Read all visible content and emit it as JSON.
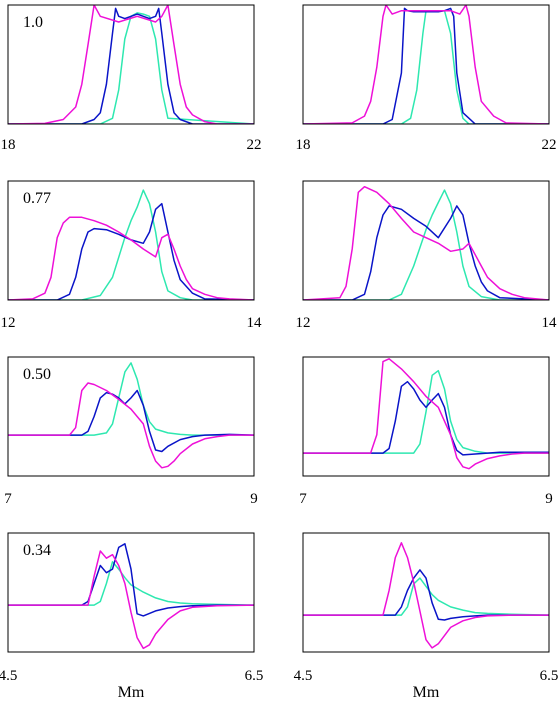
{
  "colors": {
    "cyan": "#2ee8b0",
    "blue": "#0a14c8",
    "magenta": "#ee10d8"
  },
  "chart_data": [
    {
      "type": "line",
      "panel_label": "1.0",
      "xlabel": "",
      "xlim": [
        18,
        22
      ],
      "ylim": [
        0,
        1.05
      ],
      "xticks": [
        "18",
        "22"
      ],
      "series": [
        {
          "color": "cyan",
          "x": [
            18,
            19.5,
            19.7,
            19.8,
            19.9,
            20.0,
            20.1,
            20.2,
            20.3,
            20.4,
            20.5,
            20.6,
            22
          ],
          "y": [
            0,
            0,
            0.05,
            0.3,
            0.75,
            0.95,
            0.98,
            0.97,
            0.95,
            0.75,
            0.3,
            0.05,
            0
          ]
        },
        {
          "color": "blue",
          "x": [
            18,
            19.2,
            19.4,
            19.5,
            19.6,
            19.7,
            19.75,
            19.8,
            19.9,
            20.1,
            20.3,
            20.4,
            20.45,
            20.5,
            20.6,
            20.7,
            20.8,
            21.0,
            22
          ],
          "y": [
            0,
            0,
            0.04,
            0.1,
            0.35,
            0.8,
            1.02,
            0.95,
            0.93,
            0.97,
            0.93,
            0.95,
            1.02,
            0.8,
            0.35,
            0.1,
            0.04,
            0,
            0
          ]
        },
        {
          "color": "magenta",
          "x": [
            18,
            18.6,
            18.9,
            19.1,
            19.2,
            19.3,
            19.4,
            19.5,
            19.8,
            20.1,
            20.4,
            20.5,
            20.6,
            20.7,
            20.8,
            20.9,
            21.0,
            21.2,
            21.4,
            22
          ],
          "y": [
            0,
            0.005,
            0.04,
            0.15,
            0.35,
            0.7,
            1.05,
            0.95,
            0.9,
            0.95,
            0.9,
            0.95,
            1.05,
            0.7,
            0.35,
            0.15,
            0.08,
            0.02,
            0,
            0
          ]
        }
      ]
    },
    {
      "type": "line",
      "panel_label": "",
      "xlabel": "",
      "xlim": [
        18,
        22
      ],
      "ylim": [
        0,
        1.05
      ],
      "xticks": [
        "18",
        "22"
      ],
      "series": [
        {
          "color": "cyan",
          "x": [
            18,
            19.6,
            19.75,
            19.85,
            19.95,
            20.0,
            20.1,
            20.2,
            20.3,
            20.4,
            20.5,
            20.6,
            20.7,
            22
          ],
          "y": [
            0,
            0,
            0.05,
            0.3,
            0.8,
            1.0,
            1.0,
            1.0,
            1.0,
            0.8,
            0.3,
            0.05,
            0,
            0
          ]
        },
        {
          "color": "blue",
          "x": [
            18,
            19.3,
            19.45,
            19.6,
            19.65,
            19.7,
            19.8,
            20.0,
            20.2,
            20.3,
            20.4,
            20.45,
            20.5,
            20.6,
            20.8,
            22
          ],
          "y": [
            0,
            0,
            0.04,
            0.45,
            1.02,
            1.0,
            0.99,
            0.99,
            0.99,
            1.0,
            1.02,
            0.95,
            0.45,
            0.1,
            0,
            0
          ]
        },
        {
          "color": "magenta",
          "x": [
            18,
            18.8,
            19.0,
            19.1,
            19.2,
            19.3,
            19.35,
            19.45,
            19.6,
            20.4,
            20.55,
            20.65,
            20.7,
            20.8,
            20.9,
            21.1,
            21.3,
            22
          ],
          "y": [
            0,
            0.01,
            0.07,
            0.2,
            0.5,
            0.95,
            1.05,
            0.97,
            1.0,
            1.0,
            0.97,
            1.05,
            0.95,
            0.5,
            0.2,
            0.07,
            0.01,
            0
          ]
        }
      ]
    },
    {
      "type": "line",
      "panel_label": "0.77",
      "xlabel": "",
      "xlim": [
        12,
        14
      ],
      "ylim": [
        0,
        1.05
      ],
      "xticks": [
        "12",
        "14"
      ],
      "series": [
        {
          "color": "cyan",
          "x": [
            12,
            12.6,
            12.75,
            12.85,
            12.95,
            13.0,
            13.05,
            13.1,
            13.15,
            13.2,
            13.25,
            13.3,
            13.4,
            13.5,
            14
          ],
          "y": [
            0,
            0,
            0.04,
            0.2,
            0.55,
            0.7,
            0.82,
            0.97,
            0.85,
            0.6,
            0.25,
            0.08,
            0.02,
            0,
            0
          ]
        },
        {
          "color": "blue",
          "x": [
            12,
            12.4,
            12.5,
            12.55,
            12.6,
            12.65,
            12.7,
            12.8,
            12.9,
            13.0,
            13.1,
            13.15,
            13.2,
            13.25,
            13.3,
            13.35,
            13.4,
            13.5,
            13.6,
            14
          ],
          "y": [
            0,
            0,
            0.05,
            0.2,
            0.45,
            0.6,
            0.63,
            0.62,
            0.58,
            0.53,
            0.5,
            0.6,
            0.8,
            0.85,
            0.6,
            0.35,
            0.18,
            0.06,
            0.01,
            0
          ]
        },
        {
          "color": "magenta",
          "x": [
            12,
            12.2,
            12.3,
            12.35,
            12.4,
            12.45,
            12.5,
            12.6,
            12.7,
            12.8,
            12.9,
            13.0,
            13.1,
            13.2,
            13.25,
            13.3,
            13.35,
            13.4,
            13.45,
            13.5,
            13.6,
            13.7,
            13.8,
            14
          ],
          "y": [
            0,
            0.01,
            0.06,
            0.2,
            0.55,
            0.68,
            0.73,
            0.73,
            0.7,
            0.66,
            0.6,
            0.53,
            0.45,
            0.38,
            0.55,
            0.58,
            0.45,
            0.3,
            0.18,
            0.1,
            0.05,
            0.02,
            0.01,
            0
          ]
        }
      ]
    },
    {
      "type": "line",
      "panel_label": "",
      "xlabel": "",
      "xlim": [
        12,
        14
      ],
      "ylim": [
        0,
        1.05
      ],
      "xticks": [
        "12",
        "14"
      ],
      "series": [
        {
          "color": "cyan",
          "x": [
            12,
            12.7,
            12.8,
            12.9,
            13.0,
            13.05,
            13.1,
            13.15,
            13.2,
            13.25,
            13.3,
            13.35,
            13.45,
            13.6,
            14
          ],
          "y": [
            0,
            0,
            0.05,
            0.3,
            0.62,
            0.75,
            0.86,
            0.97,
            0.85,
            0.6,
            0.3,
            0.12,
            0.03,
            0,
            0
          ]
        },
        {
          "color": "blue",
          "x": [
            12,
            12.4,
            12.5,
            12.55,
            12.6,
            12.65,
            12.7,
            12.8,
            12.9,
            13.0,
            13.1,
            13.2,
            13.25,
            13.3,
            13.35,
            13.4,
            13.45,
            13.5,
            13.6,
            14
          ],
          "y": [
            0,
            0,
            0.05,
            0.25,
            0.55,
            0.75,
            0.83,
            0.8,
            0.72,
            0.65,
            0.55,
            0.72,
            0.83,
            0.75,
            0.5,
            0.3,
            0.16,
            0.08,
            0.02,
            0
          ]
        },
        {
          "color": "magenta",
          "x": [
            12,
            12.3,
            12.35,
            12.4,
            12.45,
            12.5,
            12.6,
            12.7,
            12.8,
            12.9,
            13.0,
            13.1,
            13.2,
            13.3,
            13.35,
            13.4,
            13.45,
            13.5,
            13.6,
            13.7,
            13.8,
            14
          ],
          "y": [
            0,
            0.02,
            0.12,
            0.45,
            0.95,
            1.0,
            0.95,
            0.85,
            0.72,
            0.6,
            0.55,
            0.5,
            0.43,
            0.45,
            0.5,
            0.4,
            0.3,
            0.2,
            0.1,
            0.05,
            0.02,
            0
          ]
        }
      ]
    },
    {
      "type": "line",
      "panel_label": "0.50",
      "xlabel": "",
      "xlim": [
        7,
        9
      ],
      "ylim": [
        -0.55,
        1.05
      ],
      "xticks": [
        "7",
        "9"
      ],
      "series": [
        {
          "color": "cyan",
          "x": [
            7,
            7.7,
            7.8,
            7.85,
            7.9,
            7.95,
            8.0,
            8.05,
            8.1,
            8.15,
            8.2,
            8.3,
            8.4,
            8.5,
            9
          ],
          "y": [
            0,
            0,
            0.03,
            0.15,
            0.5,
            0.85,
            0.97,
            0.75,
            0.4,
            0.18,
            0.08,
            0.03,
            0.01,
            0,
            0
          ]
        },
        {
          "color": "blue",
          "x": [
            7,
            7.6,
            7.65,
            7.7,
            7.75,
            7.8,
            7.85,
            7.9,
            7.95,
            8.0,
            8.05,
            8.1,
            8.15,
            8.2,
            8.25,
            8.3,
            8.4,
            8.5,
            8.6,
            8.8,
            9
          ],
          "y": [
            0,
            0,
            0.05,
            0.25,
            0.5,
            0.57,
            0.55,
            0.5,
            0.42,
            0.5,
            0.6,
            0.4,
            0.05,
            -0.2,
            -0.22,
            -0.15,
            -0.06,
            -0.02,
            0.0,
            0.01,
            0
          ]
        },
        {
          "color": "magenta",
          "x": [
            7,
            7.5,
            7.55,
            7.6,
            7.65,
            7.7,
            7.8,
            7.9,
            8.0,
            8.1,
            8.15,
            8.2,
            8.25,
            8.3,
            8.35,
            8.4,
            8.5,
            8.6,
            8.7,
            8.8,
            9
          ],
          "y": [
            0,
            0,
            0.1,
            0.6,
            0.7,
            0.68,
            0.6,
            0.48,
            0.35,
            0.15,
            -0.15,
            -0.35,
            -0.44,
            -0.42,
            -0.35,
            -0.25,
            -0.12,
            -0.05,
            -0.02,
            0,
            0
          ]
        }
      ]
    },
    {
      "type": "line",
      "panel_label": "",
      "xlabel": "",
      "xlim": [
        7,
        9
      ],
      "ylim": [
        -0.25,
        1.05
      ],
      "xticks": [
        "7",
        "9"
      ],
      "series": [
        {
          "color": "cyan",
          "x": [
            7,
            7.9,
            7.95,
            8.0,
            8.05,
            8.1,
            8.15,
            8.2,
            8.25,
            8.3,
            8.4,
            8.5,
            8.6,
            9
          ],
          "y": [
            0,
            0,
            0.1,
            0.45,
            0.85,
            0.9,
            0.7,
            0.35,
            0.15,
            0.06,
            0.02,
            0,
            0,
            0
          ]
        },
        {
          "color": "blue",
          "x": [
            7,
            7.65,
            7.7,
            7.75,
            7.8,
            7.85,
            7.9,
            7.95,
            8.0,
            8.05,
            8.1,
            8.15,
            8.2,
            8.25,
            8.3,
            8.4,
            8.5,
            8.6,
            8.8,
            9
          ],
          "y": [
            0,
            0,
            0.05,
            0.35,
            0.73,
            0.78,
            0.7,
            0.58,
            0.5,
            0.58,
            0.65,
            0.5,
            0.2,
            0.03,
            -0.02,
            -0.01,
            0.0,
            0.01,
            0.01,
            0.01
          ]
        },
        {
          "color": "magenta",
          "x": [
            7,
            7.55,
            7.6,
            7.65,
            7.7,
            7.8,
            7.9,
            8.0,
            8.1,
            8.2,
            8.25,
            8.3,
            8.35,
            8.4,
            8.5,
            8.6,
            8.7,
            8.8,
            9
          ],
          "y": [
            0,
            0,
            0.2,
            1.0,
            1.03,
            0.92,
            0.78,
            0.62,
            0.5,
            0.2,
            -0.05,
            -0.15,
            -0.17,
            -0.12,
            -0.06,
            -0.03,
            -0.01,
            0,
            0
          ]
        }
      ]
    },
    {
      "type": "line",
      "panel_label": "0.34",
      "xlabel": "Mm",
      "xlim": [
        4.5,
        6.5
      ],
      "ylim": [
        -0.65,
        1.0
      ],
      "xticks": [
        "4.5",
        "6.5"
      ],
      "series": [
        {
          "color": "cyan",
          "x": [
            4.5,
            5.2,
            5.25,
            5.3,
            5.35,
            5.4,
            5.45,
            5.5,
            5.6,
            5.7,
            5.8,
            5.9,
            6.0,
            6.2,
            6.5
          ],
          "y": [
            0,
            0,
            0.05,
            0.3,
            0.6,
            0.5,
            0.38,
            0.28,
            0.18,
            0.1,
            0.05,
            0.03,
            0.02,
            0.01,
            0
          ]
        },
        {
          "color": "blue",
          "x": [
            4.5,
            5.1,
            5.15,
            5.2,
            5.25,
            5.3,
            5.35,
            5.4,
            5.45,
            5.5,
            5.55,
            5.6,
            5.7,
            5.8,
            5.9,
            6.0,
            6.2,
            6.5
          ],
          "y": [
            0,
            0,
            0.05,
            0.3,
            0.55,
            0.45,
            0.5,
            0.8,
            0.85,
            0.5,
            -0.12,
            -0.15,
            -0.08,
            -0.04,
            -0.02,
            -0.01,
            0,
            0
          ]
        },
        {
          "color": "magenta",
          "x": [
            4.5,
            5.15,
            5.2,
            5.25,
            5.3,
            5.35,
            5.4,
            5.45,
            5.5,
            5.55,
            5.6,
            5.65,
            5.7,
            5.8,
            5.9,
            6.0,
            6.2,
            6.5
          ],
          "y": [
            0,
            0,
            0.4,
            0.75,
            0.65,
            0.7,
            0.55,
            0.3,
            -0.1,
            -0.45,
            -0.6,
            -0.55,
            -0.4,
            -0.2,
            -0.08,
            -0.03,
            -0.01,
            0
          ]
        }
      ]
    },
    {
      "type": "line",
      "panel_label": "",
      "xlabel": "Mm",
      "xlim": [
        4.5,
        6.5
      ],
      "ylim": [
        -0.45,
        1.0
      ],
      "xticks": [
        "4.5",
        "6.5"
      ],
      "series": [
        {
          "color": "cyan",
          "x": [
            4.5,
            5.3,
            5.35,
            5.4,
            5.45,
            5.5,
            5.55,
            5.6,
            5.7,
            5.8,
            5.9,
            6.0,
            6.2,
            6.5
          ],
          "y": [
            0,
            0,
            0.1,
            0.38,
            0.45,
            0.35,
            0.25,
            0.18,
            0.1,
            0.06,
            0.03,
            0.02,
            0.01,
            0
          ]
        },
        {
          "color": "blue",
          "x": [
            4.5,
            5.25,
            5.3,
            5.35,
            5.4,
            5.45,
            5.5,
            5.55,
            5.6,
            5.65,
            5.7,
            5.8,
            5.9,
            6.0,
            6.2,
            6.5
          ],
          "y": [
            0,
            0,
            0.1,
            0.3,
            0.45,
            0.55,
            0.45,
            0.15,
            -0.05,
            -0.06,
            -0.04,
            -0.02,
            -0.01,
            0,
            0,
            0
          ]
        },
        {
          "color": "magenta",
          "x": [
            4.5,
            5.15,
            5.2,
            5.25,
            5.3,
            5.35,
            5.4,
            5.45,
            5.5,
            5.55,
            5.6,
            5.65,
            5.7,
            5.8,
            5.9,
            6.0,
            6.2,
            6.5
          ],
          "y": [
            0,
            0,
            0.3,
            0.7,
            0.88,
            0.7,
            0.4,
            0.05,
            -0.3,
            -0.4,
            -0.35,
            -0.25,
            -0.15,
            -0.07,
            -0.03,
            -0.01,
            0,
            0
          ]
        }
      ]
    }
  ]
}
